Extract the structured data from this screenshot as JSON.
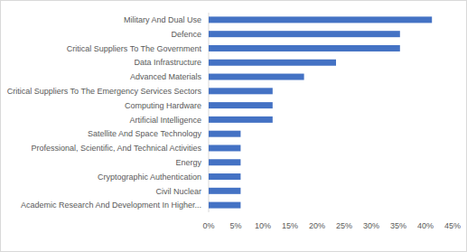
{
  "chart_data": {
    "type": "bar",
    "orientation": "horizontal",
    "categories": [
      "Military And Dual Use",
      "Defence",
      "Critical Suppliers To The Government",
      "Data Infrastructure",
      "Advanced Materials",
      "Critical Suppliers To The Emergency Services Sectors",
      "Computing Hardware",
      "Artificial Intelligence",
      "Satellite And Space  Technology",
      "Professional, Scientific, And Technical Activities",
      "Energy",
      "Cryptographic Authentication",
      "Civil Nuclear",
      "Academic Research And Development In Higher..."
    ],
    "values": [
      41.2,
      35.3,
      35.3,
      23.5,
      17.6,
      11.8,
      11.8,
      11.8,
      5.9,
      5.9,
      5.9,
      5.9,
      5.9,
      5.9
    ],
    "color": "#4472c4",
    "xlim": [
      0,
      45
    ],
    "xticks": [
      {
        "value": 0,
        "label": "0%"
      },
      {
        "value": 5,
        "label": "5%"
      },
      {
        "value": 10,
        "label": "10%"
      },
      {
        "value": 15,
        "label": "15%"
      },
      {
        "value": 20,
        "label": "20%"
      },
      {
        "value": 25,
        "label": "25%"
      },
      {
        "value": 30,
        "label": "30%"
      },
      {
        "value": 35,
        "label": "35%"
      },
      {
        "value": 40,
        "label": "40%"
      },
      {
        "value": 45,
        "label": "45%"
      }
    ],
    "grid": false
  }
}
